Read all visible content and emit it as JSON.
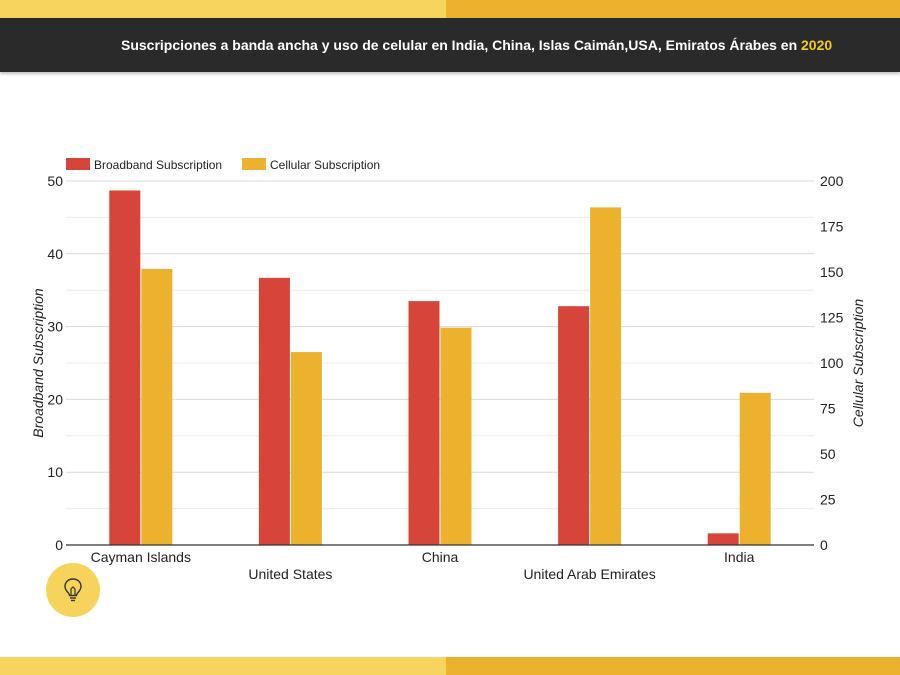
{
  "header": {
    "title_main": "Suscripciones a banda ancha y uso de celular en India, China, Islas Caimán,USA, Emiratos Árabes en ",
    "title_year": "2020"
  },
  "colors": {
    "broadband": "#d6443a",
    "cellular": "#ecb22e",
    "header_bg": "#2a2a2a",
    "stripe_light": "#f7d45e",
    "stripe_dark": "#ecb22e",
    "year_accent": "#f6c928",
    "badge": "#f6d45c"
  },
  "icons": {
    "badge_icon": "lightbulb-icon"
  },
  "chart_data": {
    "type": "bar",
    "categories": [
      "Cayman Islands",
      "United States",
      "China",
      "United Arab Emirates",
      "India"
    ],
    "series": [
      {
        "name": "Broadband Subscription",
        "axis": "left",
        "values": [
          48.7,
          36.7,
          33.5,
          32.8,
          1.6
        ]
      },
      {
        "name": "Cellular Subscription",
        "axis": "right",
        "values": [
          151.7,
          106,
          119.4,
          185.5,
          83.6
        ]
      }
    ],
    "ylabel_left": "Broadband Subscription",
    "ylabel_right": "Cellular Subscription",
    "ylim_left": [
      0,
      50
    ],
    "ylim_right": [
      0,
      200
    ],
    "yticks_left": [
      0,
      10,
      20,
      30,
      40,
      50
    ],
    "yticks_right": [
      0,
      25,
      50,
      75,
      100,
      125,
      150,
      175,
      200
    ],
    "legend_position": "top-left",
    "grid": true
  }
}
